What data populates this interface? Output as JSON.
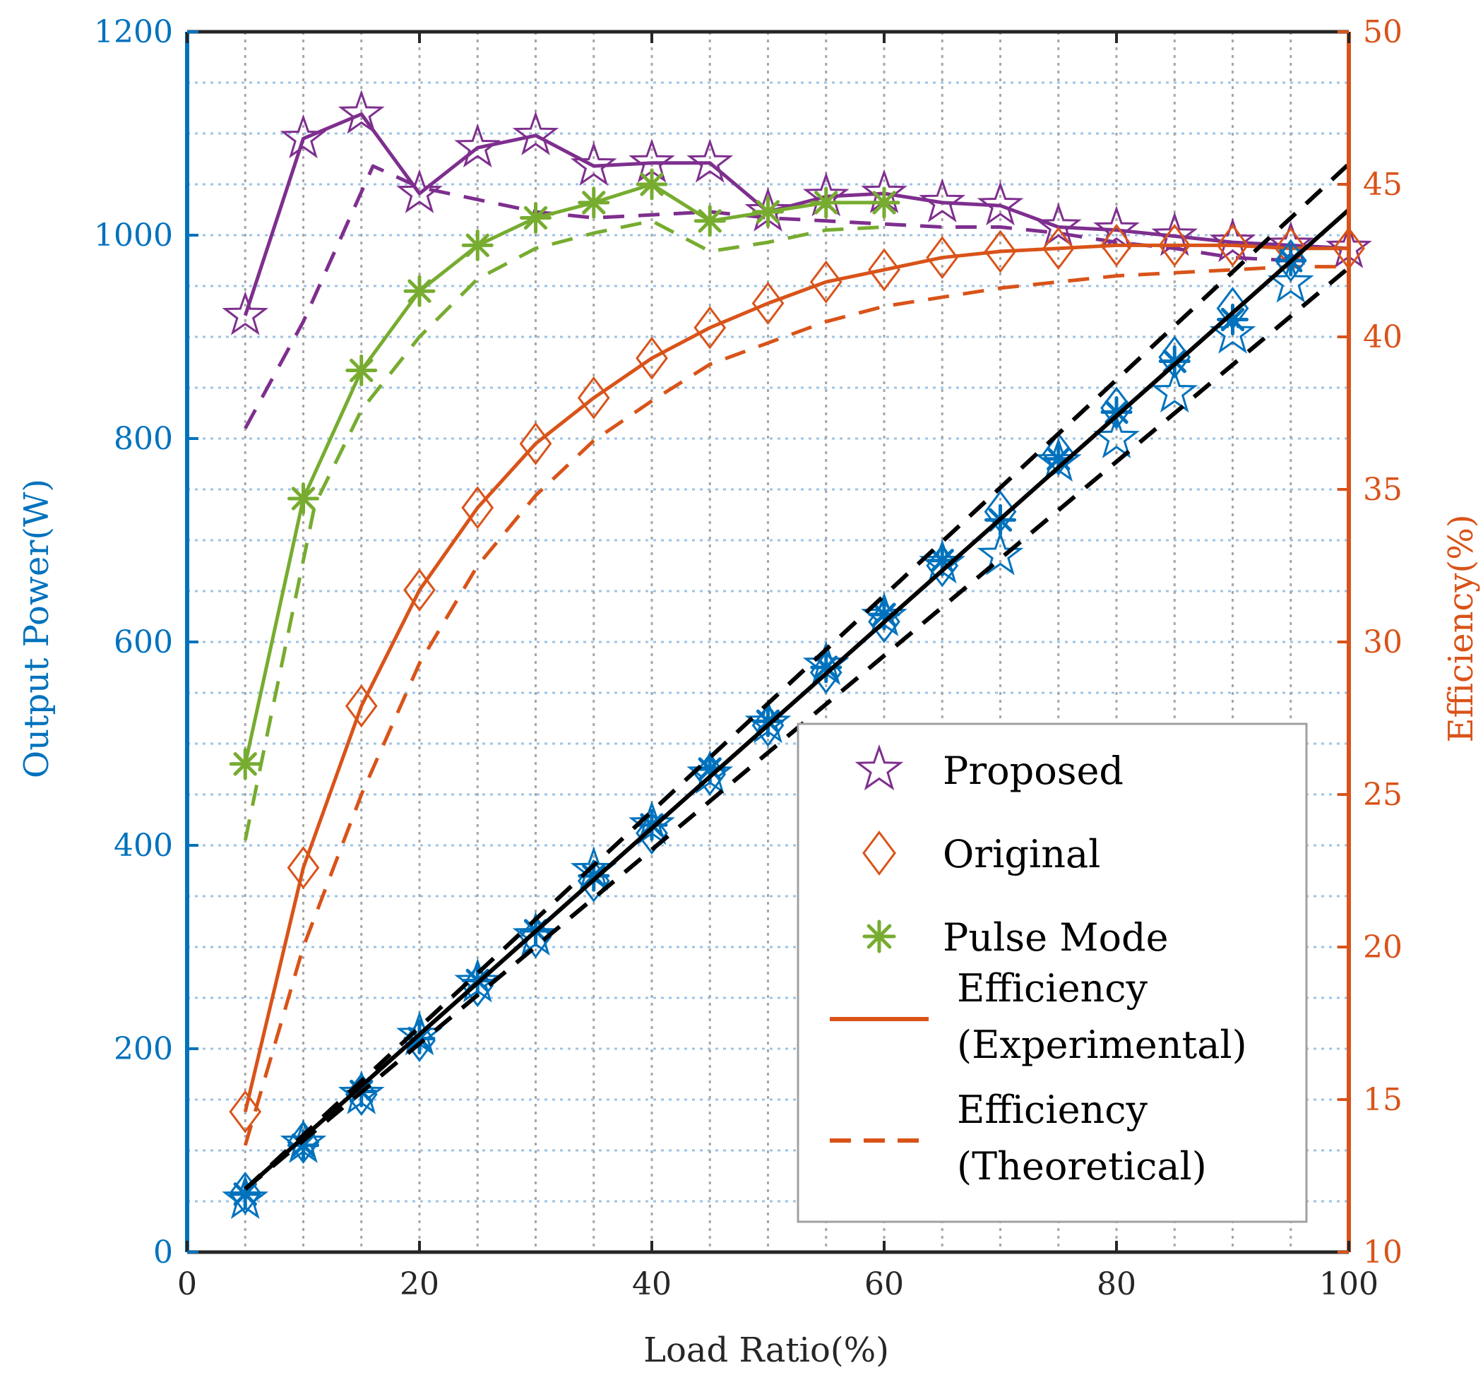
{
  "chart_data": {
    "type": "line",
    "title": "",
    "xlabel": "Load Ratio(%)",
    "ylabel_left": "Output Power(W)",
    "ylabel_right": "Efficiency(%)",
    "xlim": [
      0,
      100
    ],
    "ylim_left": [
      0,
      1200
    ],
    "ylim_right": [
      10,
      50
    ],
    "x_ticks": [
      0,
      20,
      40,
      60,
      80,
      100
    ],
    "y_left_ticks": [
      0,
      200,
      400,
      600,
      800,
      1000,
      1200
    ],
    "y_right_ticks": [
      10,
      15,
      20,
      25,
      30,
      35,
      40,
      45,
      50
    ],
    "grid_x": [
      5,
      10,
      15,
      20,
      25,
      30,
      35,
      40,
      45,
      50,
      55,
      60,
      65,
      70,
      75,
      80,
      85,
      90,
      95
    ],
    "grid_y": [
      50,
      100,
      150,
      200,
      250,
      300,
      350,
      400,
      450,
      500,
      550,
      600,
      650,
      700,
      750,
      800,
      850,
      900,
      950,
      1000,
      1050,
      1100,
      1150
    ],
    "colors": {
      "left_axis": "#0072BD",
      "right_axis": "#D95319",
      "proposed": "#7E2F8E",
      "original": "#D95319",
      "pulse": "#77AC30",
      "power": "#0072BD",
      "fit": "#000000",
      "grid": "#9DC3E6",
      "grid_v": "#A6A6A6"
    },
    "legend": {
      "position": "lower-right",
      "entries": [
        {
          "label": "Proposed",
          "marker": "star",
          "color": "#7E2F8E"
        },
        {
          "label": "Original",
          "marker": "diamond",
          "color": "#D95319"
        },
        {
          "label": "Pulse Mode",
          "marker": "asterisk",
          "color": "#77AC30"
        },
        {
          "label_lines": [
            "Efficiency",
            "(Experimental)"
          ],
          "line": "solid",
          "color": "#D95319"
        },
        {
          "label_lines": [
            "Efficiency",
            "(Theoretical)"
          ],
          "line": "dashed",
          "color": "#D95319"
        }
      ]
    },
    "series": [
      {
        "name": "Proposed efficiency (experimental)",
        "axis": "right",
        "marker": "star",
        "line": "solid",
        "color": "#7E2F8E",
        "x": [
          5,
          10,
          15,
          20,
          25,
          30,
          35,
          40,
          45,
          50,
          55,
          60,
          65,
          70,
          75,
          80,
          85,
          90,
          95,
          100
        ],
        "y": [
          40.7,
          46.5,
          47.3,
          44.7,
          46.2,
          46.6,
          45.6,
          45.7,
          45.7,
          44.1,
          44.6,
          44.7,
          44.4,
          44.3,
          43.6,
          43.5,
          43.3,
          43.1,
          43.0,
          42.9
        ]
      },
      {
        "name": "Proposed efficiency (theoretical)",
        "axis": "right",
        "line": "dashed",
        "color": "#7E2F8E",
        "x": [
          5,
          10,
          16,
          20,
          25,
          30,
          35,
          40,
          45,
          50,
          55,
          60,
          65,
          70,
          75,
          80,
          85,
          90,
          95
        ],
        "y": [
          37.0,
          40.5,
          45.6,
          44.9,
          44.5,
          44.1,
          43.9,
          44.0,
          44.1,
          43.9,
          43.8,
          43.7,
          43.6,
          43.6,
          43.4,
          43.1,
          42.9,
          42.6,
          42.5
        ]
      },
      {
        "name": "Pulse Mode efficiency (experimental)",
        "axis": "right",
        "marker": "asterisk",
        "line": "solid",
        "color": "#77AC30",
        "x": [
          5,
          10,
          15,
          20,
          25,
          30,
          35,
          40,
          45,
          50,
          55,
          60
        ],
        "y": [
          26.0,
          34.7,
          38.9,
          41.5,
          43.0,
          43.9,
          44.4,
          45.0,
          43.8,
          44.1,
          44.4,
          44.4
        ]
      },
      {
        "name": "Pulse Mode efficiency (theoretical)",
        "axis": "right",
        "line": "dashed",
        "color": "#77AC30",
        "x": [
          5,
          11,
          15,
          20,
          25,
          30,
          35,
          40,
          45,
          50,
          55,
          60
        ],
        "y": [
          23.5,
          34.5,
          37.6,
          40.0,
          41.9,
          42.9,
          43.4,
          43.8,
          42.8,
          43.1,
          43.5,
          43.6
        ]
      },
      {
        "name": "Original efficiency (experimental)",
        "axis": "right",
        "marker": "diamond",
        "line": "solid",
        "color": "#D95319",
        "x": [
          5,
          10,
          15,
          20,
          25,
          30,
          35,
          40,
          45,
          50,
          55,
          60,
          65,
          70,
          75,
          80,
          85,
          90,
          95,
          100
        ],
        "y": [
          14.6,
          22.6,
          27.9,
          31.7,
          34.4,
          36.5,
          38.0,
          39.3,
          40.3,
          41.1,
          41.8,
          42.2,
          42.6,
          42.8,
          42.9,
          43.0,
          43.0,
          43.0,
          42.9,
          42.9
        ]
      },
      {
        "name": "Original efficiency (theoretical)",
        "axis": "right",
        "line": "dashed",
        "color": "#D95319",
        "x": [
          5,
          10,
          15,
          20,
          25,
          30,
          35,
          40,
          45,
          50,
          55,
          60,
          65,
          70,
          75,
          80,
          85,
          90,
          95,
          100
        ],
        "y": [
          13.5,
          20.0,
          25.0,
          29.3,
          32.5,
          34.8,
          36.6,
          37.9,
          39.1,
          39.8,
          40.5,
          41.0,
          41.3,
          41.6,
          41.8,
          42.0,
          42.1,
          42.2,
          42.3,
          42.3
        ]
      },
      {
        "name": "Proposed output power",
        "axis": "left",
        "marker": "star",
        "line": "none",
        "color": "#0072BD",
        "x": [
          5,
          10,
          15,
          20,
          25,
          30,
          35,
          40,
          45,
          50,
          55,
          60,
          65,
          70,
          75,
          80,
          85,
          90,
          95
        ],
        "y": [
          52,
          107,
          155,
          213,
          265,
          311,
          375,
          420,
          470,
          520,
          577,
          625,
          677,
          685,
          777,
          800,
          845,
          903,
          953
        ]
      },
      {
        "name": "Original output power",
        "axis": "left",
        "marker": "diamond",
        "line": "none",
        "color": "#0072BD",
        "x": [
          5,
          10,
          15,
          20,
          25,
          30,
          35,
          40,
          45,
          50,
          55,
          60,
          65,
          70,
          75,
          80,
          85,
          90,
          95
        ],
        "y": [
          58,
          108,
          155,
          208,
          262,
          310,
          365,
          412,
          470,
          518,
          570,
          620,
          675,
          728,
          785,
          830,
          880,
          928,
          975
        ]
      },
      {
        "name": "Pulse Mode output power",
        "axis": "left",
        "marker": "asterisk",
        "line": "none",
        "color": "#0072BD",
        "x": [
          5,
          10,
          15,
          20,
          25,
          30,
          35,
          40,
          45,
          50,
          55,
          60,
          65,
          70,
          75,
          80,
          85,
          90,
          95
        ],
        "y": [
          57,
          105,
          158,
          210,
          267,
          316,
          370,
          420,
          475,
          522,
          575,
          627,
          680,
          720,
          780,
          826,
          876,
          917,
          975
        ]
      },
      {
        "name": "Linear fit",
        "axis": "left",
        "line": "solid",
        "color": "#000000",
        "x": [
          5,
          100
        ],
        "y": [
          62,
          1025
        ]
      },
      {
        "name": "Upper bound",
        "axis": "left",
        "line": "dashed",
        "color": "#000000",
        "x": [
          5,
          100
        ],
        "y": [
          62,
          1070
        ]
      },
      {
        "name": "Lower bound",
        "axis": "left",
        "line": "dashed",
        "color": "#000000",
        "x": [
          5,
          100
        ],
        "y": [
          62,
          968
        ]
      }
    ]
  }
}
